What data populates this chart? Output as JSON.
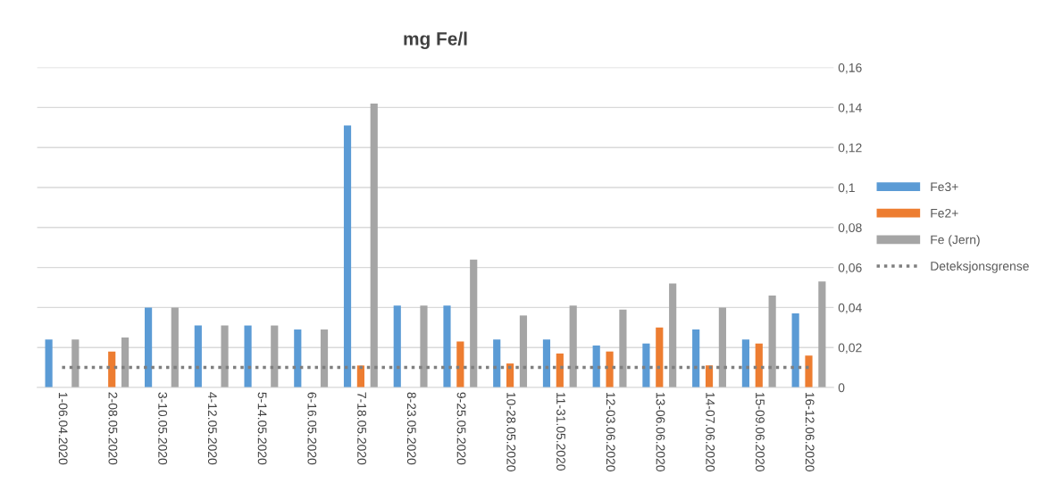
{
  "chart_data": {
    "type": "bar",
    "title": "mg Fe/l",
    "categories": [
      "1-06.04.2020",
      "2-08.05.2020",
      "3-10.05.2020",
      "4-12.05.2020",
      "5-14.05.2020",
      "6-16.05.2020",
      "7-18.05.2020",
      "8-23.05.2020",
      "9-25.05.2020",
      "10-28.05.2020",
      "11-31.05.2020",
      "12-03.06.2020",
      "13-06.06.2020",
      "14-07.06.2020",
      "15-09.06.2020",
      "16-12.06.2020"
    ],
    "series": [
      {
        "name": "Fe3+",
        "color": "#5b9bd5",
        "values": [
          0.024,
          null,
          0.04,
          0.031,
          0.031,
          0.029,
          0.131,
          0.041,
          0.041,
          0.024,
          0.024,
          0.021,
          0.022,
          0.029,
          0.024,
          0.037
        ]
      },
      {
        "name": "Fe2+",
        "color": "#ed7d31",
        "values": [
          null,
          0.018,
          null,
          null,
          null,
          null,
          0.011,
          null,
          0.023,
          0.012,
          0.017,
          0.018,
          0.03,
          0.011,
          0.022,
          0.016
        ]
      },
      {
        "name": "Fe (Jern)",
        "color": "#a5a5a5",
        "values": [
          0.024,
          0.025,
          0.04,
          0.031,
          0.031,
          0.029,
          0.142,
          0.041,
          0.064,
          0.036,
          0.041,
          0.039,
          0.052,
          0.04,
          0.046,
          0.053
        ]
      },
      {
        "name": "Deteksjonsgrense",
        "type": "line",
        "line_style": "dotted",
        "color": "#7f7f7f",
        "values": [
          0.01,
          0.01,
          0.01,
          0.01,
          0.01,
          0.01,
          0.01,
          0.01,
          0.01,
          0.01,
          0.01,
          0.01,
          0.01,
          0.01,
          0.01,
          0.01
        ]
      }
    ],
    "ylim": [
      0,
      0.16
    ],
    "yticks": [
      0,
      {
        "value": 0.02,
        "label": "0,02"
      },
      {
        "value": 0.04,
        "label": "0,04"
      },
      {
        "value": 0.06,
        "label": "0,06"
      },
      {
        "value": 0.08,
        "label": "0,08"
      },
      {
        "value": 0.1,
        "label": "0,1"
      },
      {
        "value": 0.12,
        "label": "0,12"
      },
      {
        "value": 0.14,
        "label": "0,14"
      },
      {
        "value": 0.16,
        "label": "0,16"
      }
    ],
    "grid": "y",
    "legend": "right"
  }
}
